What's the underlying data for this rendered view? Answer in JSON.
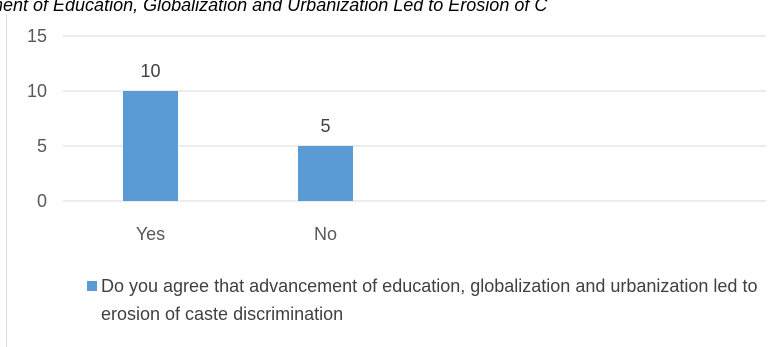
{
  "chart_data": {
    "type": "bar",
    "title": "ment of Education, Globalization and Urbanization Led to Erosion of C",
    "xlabel": "",
    "ylabel": "",
    "categories": [
      "Yes",
      "No"
    ],
    "series": [
      {
        "name": "Do you agree that advancement of education, globalization and urbanization led to erosion of caste discrimination",
        "values": [
          10,
          5
        ],
        "color": "#5b9bd5"
      }
    ],
    "data_labels": [
      "10",
      "5"
    ],
    "ylim": [
      0,
      15
    ],
    "yticks": [
      0,
      5,
      10,
      15
    ],
    "ytick_labels": [
      "0",
      "5",
      "10",
      "15"
    ],
    "grid": true,
    "legend_position": "bottom"
  }
}
